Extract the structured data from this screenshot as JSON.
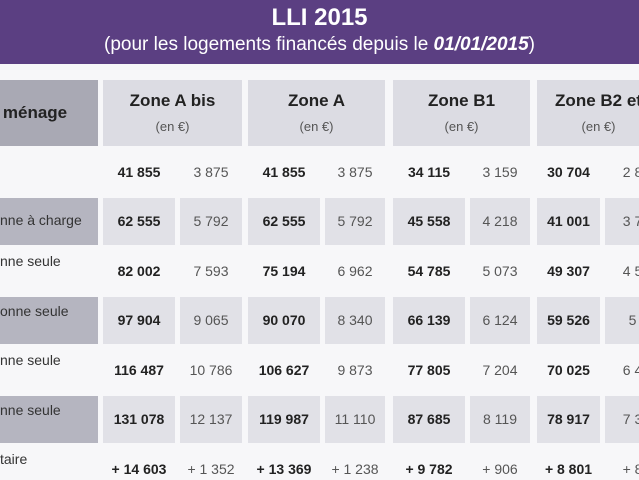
{
  "header": {
    "title": "LLI 2015",
    "subtitle": [
      "(pour les logements financés depuis le ",
      "01/01/2015",
      ")"
    ]
  },
  "table": {
    "header_label": "ménage",
    "zones": [
      {
        "name": "Zone A bis",
        "unit": "(en €)"
      },
      {
        "name": "Zone A",
        "unit": "(en €)"
      },
      {
        "name": "Zone B1",
        "unit": "(en €)"
      },
      {
        "name": "Zone B2 et",
        "unit": "(en €)"
      }
    ],
    "rows": [
      {
        "label": null,
        "cells": [
          "41 855",
          "3 875",
          "41 855",
          "3 875",
          "34 115",
          "3 159",
          "30 704",
          "2 8"
        ]
      },
      {
        "label": "nne à charge",
        "cells": [
          "62 555",
          "5 792",
          "62 555",
          "5 792",
          "45 558",
          "4 218",
          "41 001",
          "3 7"
        ]
      },
      {
        "label": "nne seule",
        "cells": [
          "82 002",
          "7 593",
          "75 194",
          "6 962",
          "54 785",
          "5 073",
          "49 307",
          "4 5"
        ]
      },
      {
        "label": "onne seule",
        "cells": [
          "97 904",
          "9 065",
          "90 070",
          "8 340",
          "66 139",
          "6 124",
          "59 526",
          "5"
        ]
      },
      {
        "label": "nne seule",
        "cells": [
          "116 487",
          "10 786",
          "106 627",
          "9 873",
          "77 805",
          "7 204",
          "70 025",
          "6 4"
        ]
      },
      {
        "label": "nne seule",
        "cells": [
          "131 078",
          "12 137",
          "119 987",
          "11 110",
          "87 685",
          "8 119",
          "78 917",
          "7 3"
        ]
      },
      {
        "label": "taire",
        "cells": [
          "+ 14 603",
          "+ 1 352",
          "+ 13 369",
          "+ 1 238",
          "+ 9 782",
          "+ 906",
          "+ 8 801",
          "+ 8"
        ]
      }
    ]
  }
}
